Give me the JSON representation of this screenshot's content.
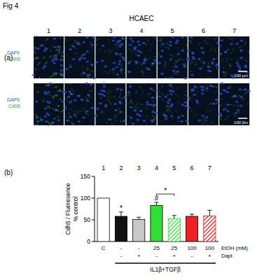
{
  "figure": {
    "label": "Fig 4",
    "cell_line": "HCAEC",
    "panel_labels": [
      "(a)",
      "(b)"
    ],
    "columns": [
      "1",
      "2",
      "3",
      "4",
      "5",
      "6",
      "7"
    ],
    "stain_label": [
      "DAPI/",
      "Cdh5"
    ],
    "scale_bar": "100 µm"
  },
  "chart_data": {
    "type": "bar",
    "y_label": [
      "Cdh5 / Fluoresence",
      "% control"
    ],
    "categories": [
      "1",
      "2",
      "3",
      "4",
      "5",
      "6",
      "7"
    ],
    "values": [
      100,
      58,
      51,
      83,
      53,
      58,
      59
    ],
    "errors": [
      0,
      10,
      5,
      7,
      7,
      5,
      13
    ],
    "colors": [
      "#ffffff",
      "#111111",
      "#c8c8c8",
      "#33dd33",
      "#33dd33",
      "#ee2222",
      "#cc2222"
    ],
    "ylim": [
      0,
      150
    ],
    "yticks": [
      0,
      50,
      100,
      150
    ],
    "grid": false,
    "treatments": [
      {
        "name": "EtOH (mM)",
        "labels": [
          "C",
          "-",
          "-",
          "25",
          "25",
          "100",
          "100"
        ]
      },
      {
        "name": "Dapt",
        "labels": [
          null,
          "-",
          "+",
          "-",
          "+",
          "-",
          "+"
        ]
      }
    ],
    "group_label": "IL1β+TGFβ",
    "annotations": [
      {
        "text": "*",
        "bars": [
          1
        ]
      },
      {
        "text": "#",
        "bars": [
          3
        ]
      },
      {
        "text": "*",
        "bars": [
          3,
          4
        ]
      }
    ]
  }
}
